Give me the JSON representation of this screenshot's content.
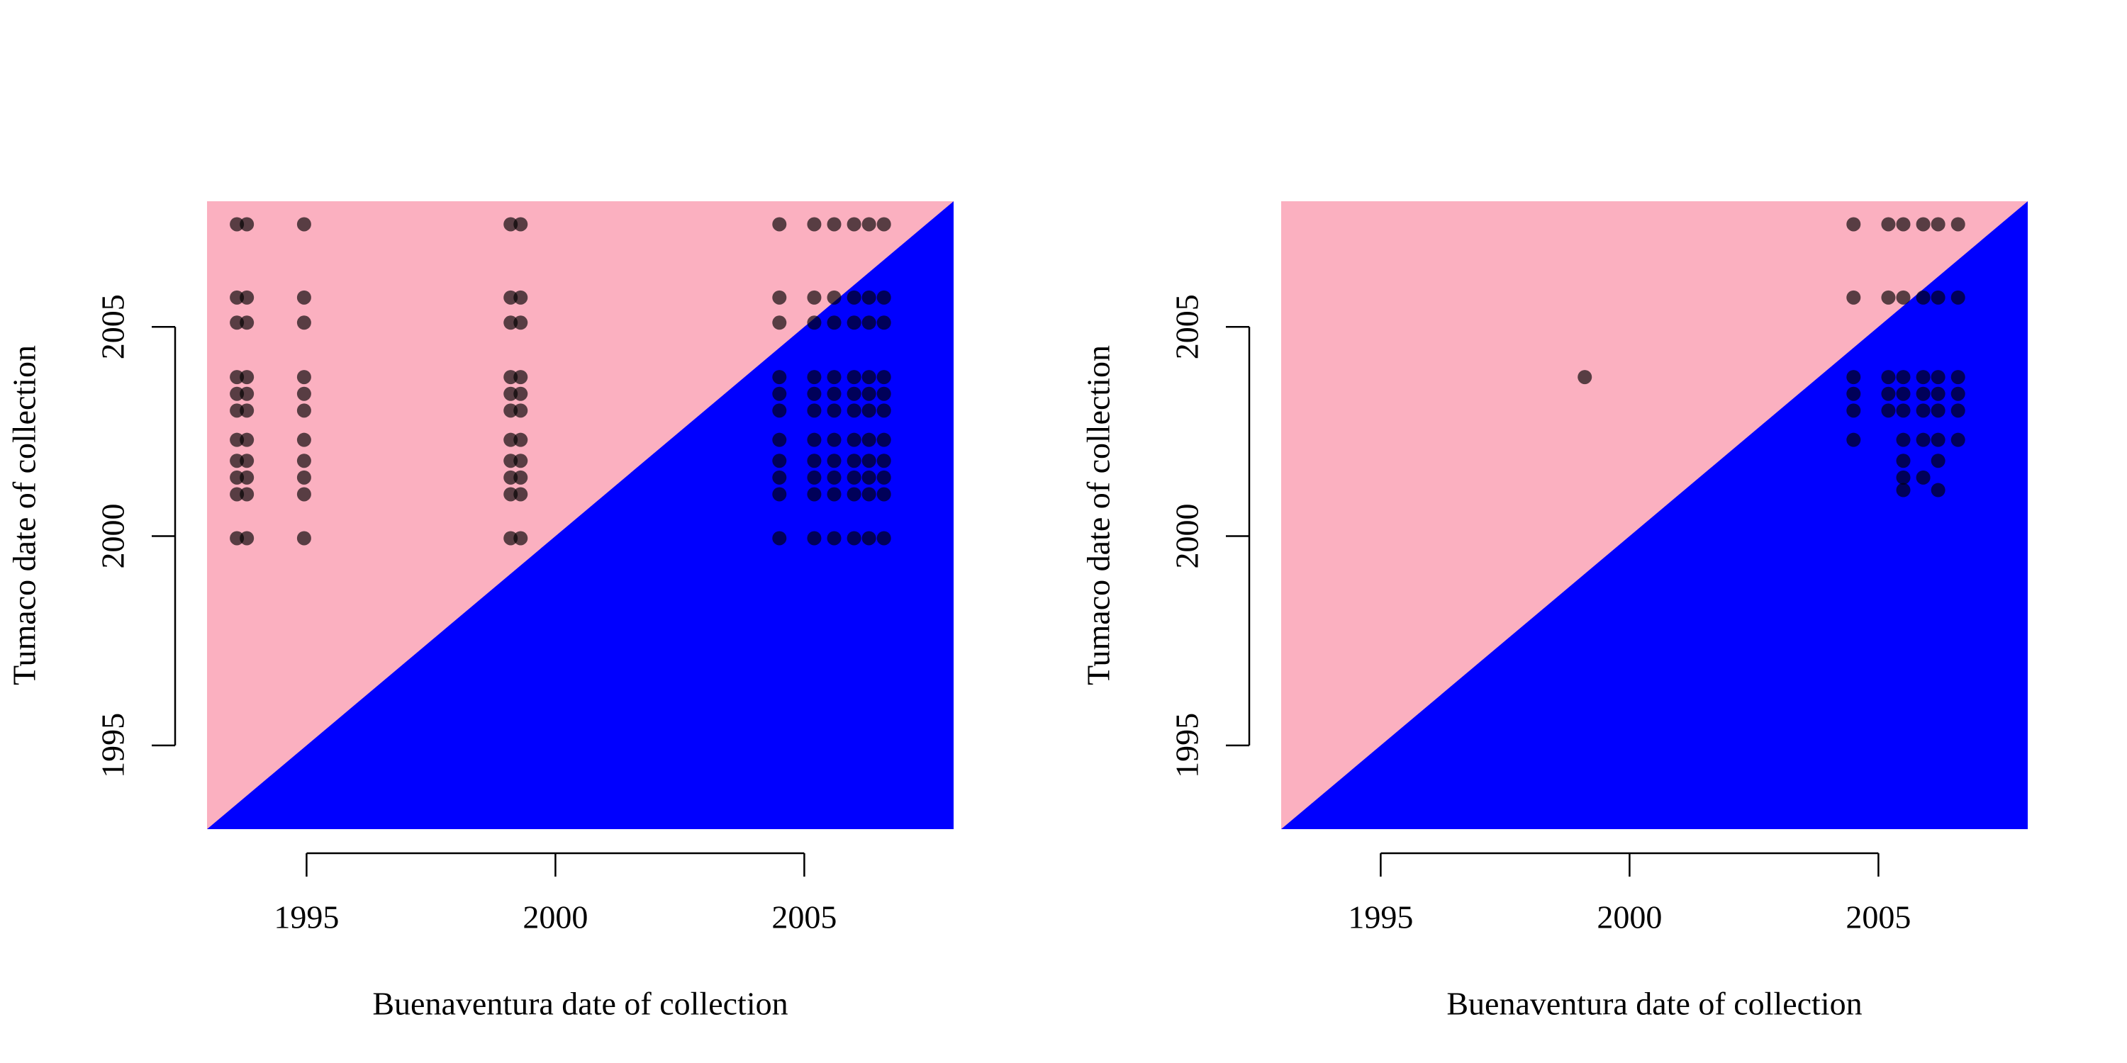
{
  "chart_data": [
    {
      "type": "scatter",
      "xlabel": "Buenaventura date of collection",
      "ylabel": "Tumaco date of collection",
      "xlim": [
        1993,
        2008
      ],
      "ylim": [
        1993,
        2008
      ],
      "xticks": [
        1995,
        2000,
        2005
      ],
      "yticks": [
        1995,
        2000,
        2005
      ],
      "color": "#000000",
      "above_color": "#fbb0c0",
      "below_color": "#0000ff",
      "x": [
        1993.6,
        1993.6,
        1993.6,
        1993.6,
        1993.6,
        1993.6,
        1993.6,
        1993.6,
        1993.6,
        1993.6,
        1993.6,
        1993.8,
        1993.8,
        1993.8,
        1993.8,
        1993.8,
        1993.8,
        1993.8,
        1993.8,
        1993.8,
        1993.8,
        1993.8,
        1994.95,
        1994.95,
        1994.95,
        1994.95,
        1994.95,
        1994.95,
        1994.95,
        1994.95,
        1994.95,
        1994.95,
        1994.95,
        1999.1,
        1999.1,
        1999.1,
        1999.1,
        1999.1,
        1999.1,
        1999.1,
        1999.1,
        1999.1,
        1999.1,
        1999.1,
        1999.3,
        1999.3,
        1999.3,
        1999.3,
        1999.3,
        1999.3,
        1999.3,
        1999.3,
        1999.3,
        1999.3,
        1999.3,
        2004.5,
        2004.5,
        2004.5,
        2004.5,
        2004.5,
        2004.5,
        2004.5,
        2004.5,
        2004.5,
        2004.5,
        2004.5,
        2005.2,
        2005.2,
        2005.2,
        2005.2,
        2005.2,
        2005.2,
        2005.2,
        2005.2,
        2005.2,
        2005.2,
        2005.2,
        2005.6,
        2005.6,
        2005.6,
        2005.6,
        2005.6,
        2005.6,
        2005.6,
        2005.6,
        2005.6,
        2005.6,
        2005.6,
        2006.0,
        2006.0,
        2006.0,
        2006.0,
        2006.0,
        2006.0,
        2006.0,
        2006.0,
        2006.0,
        2006.0,
        2006.0,
        2006.3,
        2006.3,
        2006.3,
        2006.3,
        2006.3,
        2006.3,
        2006.3,
        2006.3,
        2006.3,
        2006.3,
        2006.3,
        2006.6,
        2006.6,
        2006.6,
        2006.6,
        2006.6,
        2006.6,
        2006.6,
        2006.6,
        2006.6,
        2006.6,
        2006.6
      ],
      "y": [
        1999.95,
        2001.0,
        2001.4,
        2001.8,
        2002.3,
        2003.0,
        2003.4,
        2003.8,
        2005.1,
        2005.7,
        2007.45,
        1999.95,
        2001.0,
        2001.4,
        2001.8,
        2002.3,
        2003.0,
        2003.4,
        2003.8,
        2005.1,
        2005.7,
        2007.45,
        1999.95,
        2001.0,
        2001.4,
        2001.8,
        2002.3,
        2003.0,
        2003.4,
        2003.8,
        2005.1,
        2005.7,
        2007.45,
        1999.95,
        2001.0,
        2001.4,
        2001.8,
        2002.3,
        2003.0,
        2003.4,
        2003.8,
        2005.1,
        2005.7,
        2007.45,
        1999.95,
        2001.0,
        2001.4,
        2001.8,
        2002.3,
        2003.0,
        2003.4,
        2003.8,
        2005.1,
        2005.7,
        2007.45,
        1999.95,
        2001.0,
        2001.4,
        2001.8,
        2002.3,
        2003.0,
        2003.4,
        2003.8,
        2005.1,
        2005.7,
        2007.45,
        1999.95,
        2001.0,
        2001.4,
        2001.8,
        2002.3,
        2003.0,
        2003.4,
        2003.8,
        2005.1,
        2005.7,
        2007.45,
        1999.95,
        2001.0,
        2001.4,
        2001.8,
        2002.3,
        2003.0,
        2003.4,
        2003.8,
        2005.1,
        2005.7,
        2007.45,
        1999.95,
        2001.0,
        2001.4,
        2001.8,
        2002.3,
        2003.0,
        2003.4,
        2003.8,
        2005.1,
        2005.7,
        2007.45,
        1999.95,
        2001.0,
        2001.4,
        2001.8,
        2002.3,
        2003.0,
        2003.4,
        2003.8,
        2005.1,
        2005.7,
        2007.45,
        1999.95,
        2001.0,
        2001.4,
        2001.8,
        2002.3,
        2003.0,
        2003.4,
        2003.8,
        2005.1,
        2005.7,
        2007.45
      ]
    },
    {
      "type": "scatter",
      "xlabel": "Buenaventura date of collection",
      "ylabel": "Tumaco date of collection",
      "xlim": [
        1993,
        2008
      ],
      "ylim": [
        1993,
        2008
      ],
      "xticks": [
        1995,
        2000,
        2005
      ],
      "yticks": [
        1995,
        2000,
        2005
      ],
      "color": "#000000",
      "above_color": "#fbb0c0",
      "below_color": "#0000ff",
      "x": [
        1999.1,
        2004.5,
        2004.5,
        2004.5,
        2004.5,
        2004.5,
        2004.5,
        2005.2,
        2005.2,
        2005.2,
        2005.2,
        2005.2,
        2005.5,
        2005.5,
        2005.5,
        2005.5,
        2005.5,
        2005.5,
        2005.5,
        2005.5,
        2005.5,
        2005.9,
        2005.9,
        2005.9,
        2005.9,
        2005.9,
        2005.9,
        2005.9,
        2006.2,
        2006.2,
        2006.2,
        2006.2,
        2006.2,
        2006.2,
        2006.2,
        2006.2,
        2006.6,
        2006.6,
        2006.6,
        2006.6,
        2006.6,
        2006.6
      ],
      "y": [
        2003.8,
        2002.3,
        2003.0,
        2003.4,
        2003.8,
        2005.7,
        2007.45,
        2003.0,
        2003.4,
        2003.8,
        2005.7,
        2007.45,
        2001.1,
        2001.4,
        2001.8,
        2002.3,
        2003.0,
        2003.4,
        2003.8,
        2005.7,
        2007.45,
        2001.4,
        2002.3,
        2003.0,
        2003.4,
        2003.8,
        2005.7,
        2007.45,
        2001.1,
        2001.8,
        2002.3,
        2003.0,
        2003.4,
        2003.8,
        2005.7,
        2007.45,
        2002.3,
        2003.0,
        2003.4,
        2003.8,
        2005.7,
        2007.45
      ]
    }
  ]
}
